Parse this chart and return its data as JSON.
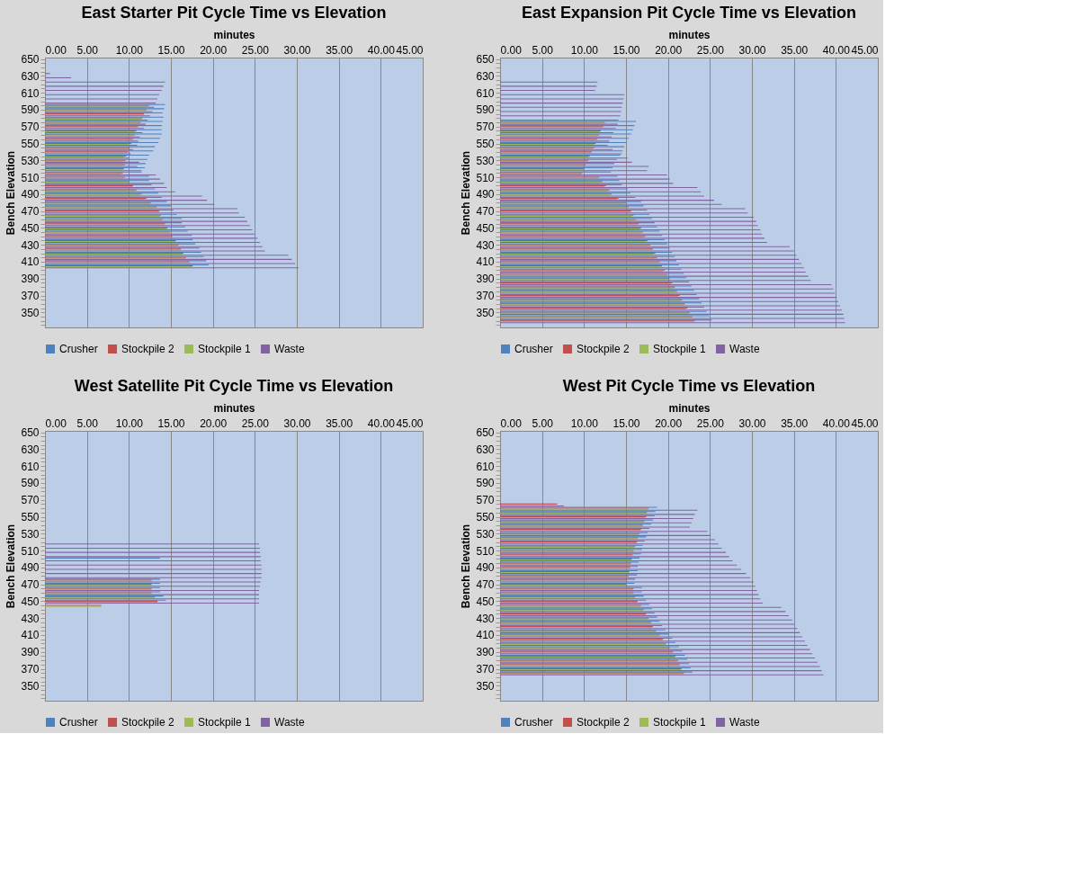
{
  "chart_data": [
    {
      "type": "bar",
      "orientation": "horizontal",
      "title": "East Starter Pit Cycle Time vs Elevation",
      "xlabel": "minutes",
      "ylabel": "Bench Elevation",
      "legend": "bottom",
      "grid": "x",
      "xlim": [
        0,
        45
      ],
      "xticks": [
        {
          "value": 0,
          "label": "0.00"
        },
        {
          "value": 5,
          "label": "5.00"
        },
        {
          "value": 10,
          "label": "10.00"
        },
        {
          "value": 15,
          "label": "15.00"
        },
        {
          "value": 20,
          "label": "20.00"
        },
        {
          "value": 25,
          "label": "25.00"
        },
        {
          "value": 30,
          "label": "30.00"
        },
        {
          "value": 35,
          "label": "35.00"
        },
        {
          "value": 40,
          "label": "40.00"
        },
        {
          "value": 45,
          "label": "45.00"
        }
      ],
      "categories": [
        "650",
        null,
        null,
        null,
        "630",
        null,
        null,
        null,
        "610",
        null,
        null,
        null,
        "590",
        null,
        null,
        null,
        "570",
        null,
        null,
        null,
        "550",
        null,
        null,
        null,
        "530",
        null,
        null,
        null,
        "510",
        null,
        null,
        null,
        "490",
        null,
        null,
        null,
        "470",
        null,
        null,
        null,
        "450",
        null,
        null,
        null,
        "430",
        null,
        null,
        null,
        "410",
        null,
        null,
        null,
        "390",
        null,
        null,
        null,
        "370",
        null,
        null,
        null,
        "350",
        null,
        null,
        null
      ],
      "series": [
        {
          "name": "Crusher",
          "color": "#4f81bd",
          "values": [
            null,
            null,
            null,
            null,
            null,
            null,
            null,
            null,
            null,
            null,
            null,
            14.3,
            14.2,
            14.0,
            14.1,
            14.0,
            13.9,
            13.9,
            13.9,
            13.7,
            13.5,
            13.1,
            12.9,
            12.4,
            12.2,
            12.0,
            11.9,
            11.5,
            12.4,
            12.4,
            12.7,
            13.1,
            13.5,
            13.9,
            14.5,
            15.0,
            15.3,
            15.7,
            16.3,
            16.3,
            16.7,
            17.0,
            17.5,
            17.6,
            17.9,
            18.4,
            18.6,
            18.9,
            19.2,
            19.5,
            null,
            null,
            null,
            null,
            null,
            null,
            null,
            null,
            null,
            null,
            null,
            null,
            null,
            null
          ]
        },
        {
          "name": "Stockpile 2",
          "color": "#c0504d",
          "values": [
            null,
            null,
            null,
            null,
            null,
            null,
            null,
            null,
            null,
            null,
            null,
            12.4,
            12.1,
            11.8,
            11.6,
            11.4,
            11.1,
            10.9,
            10.7,
            10.5,
            10.3,
            10.1,
            9.9,
            9.7,
            9.6,
            9.5,
            9.4,
            9.3,
            9.5,
            10.0,
            10.5,
            10.9,
            11.5,
            12.1,
            12.6,
            13.3,
            13.6,
            13.8,
            14.0,
            14.3,
            14.6,
            14.9,
            15.2,
            15.6,
            15.9,
            16.2,
            16.5,
            16.8,
            17.2,
            17.6,
            null,
            null,
            null,
            null,
            null,
            null,
            null,
            null,
            null,
            null,
            null,
            null,
            null,
            null
          ]
        },
        {
          "name": "Stockpile 1",
          "color": "#9bbb59",
          "values": [
            null,
            null,
            null,
            null,
            null,
            null,
            null,
            null,
            null,
            null,
            null,
            12.2,
            12.0,
            11.7,
            11.5,
            11.2,
            10.9,
            10.7,
            10.5,
            10.3,
            10.1,
            9.9,
            9.6,
            9.4,
            9.3,
            9.3,
            9.2,
            9.1,
            9.3,
            9.8,
            10.4,
            10.7,
            11.3,
            11.9,
            12.5,
            13.1,
            13.5,
            13.7,
            13.9,
            14.2,
            14.5,
            14.8,
            15.1,
            15.5,
            15.8,
            16.1,
            16.4,
            16.7,
            17.1,
            17.5,
            null,
            null,
            null,
            null,
            null,
            null,
            null,
            null,
            null,
            null,
            null,
            null,
            null,
            null
          ]
        },
        {
          "name": "Waste",
          "color": "#8064a2",
          "values": [
            null,
            null,
            null,
            0.6,
            3.1,
            14.3,
            14.1,
            13.9,
            13.6,
            13.4,
            13.2,
            13.0,
            12.8,
            12.5,
            12.2,
            12.0,
            11.8,
            11.6,
            11.3,
            11.1,
            11.0,
            10.5,
            10.2,
            10.0,
            11.2,
            11.0,
            11.5,
            13.2,
            13.7,
            14.2,
            14.5,
            15.5,
            18.7,
            19.3,
            20.2,
            22.9,
            23.1,
            23.8,
            24.1,
            24.4,
            24.7,
            25.0,
            25.3,
            25.6,
            25.9,
            26.2,
            29.0,
            29.4,
            29.8,
            30.2,
            null,
            null,
            null,
            null,
            null,
            null,
            null,
            null,
            null,
            null,
            null,
            null,
            null,
            null
          ]
        }
      ]
    },
    {
      "type": "bar",
      "orientation": "horizontal",
      "title": "East Expansion Pit Cycle Time vs Elevation",
      "xlabel": "minutes",
      "ylabel": "Bench Elevation",
      "legend": "bottom",
      "grid": "x",
      "xlim": [
        0,
        45
      ],
      "xticks": [
        {
          "value": 0,
          "label": "0.00"
        },
        {
          "value": 5,
          "label": "5.00"
        },
        {
          "value": 10,
          "label": "10.00"
        },
        {
          "value": 15,
          "label": "15.00"
        },
        {
          "value": 20,
          "label": "20.00"
        },
        {
          "value": 25,
          "label": "25.00"
        },
        {
          "value": 30,
          "label": "30.00"
        },
        {
          "value": 35,
          "label": "35.00"
        },
        {
          "value": 40,
          "label": "40.00"
        },
        {
          "value": 45,
          "label": "45.00"
        }
      ],
      "categories": [
        "650",
        null,
        null,
        null,
        "630",
        null,
        null,
        null,
        "610",
        null,
        null,
        null,
        "590",
        null,
        null,
        null,
        "570",
        null,
        null,
        null,
        "550",
        null,
        null,
        null,
        "530",
        null,
        null,
        null,
        "510",
        null,
        null,
        null,
        "490",
        null,
        null,
        null,
        "470",
        null,
        null,
        null,
        "450",
        null,
        null,
        null,
        "430",
        null,
        null,
        null,
        "410",
        null,
        null,
        null,
        "390",
        null,
        null,
        null,
        "370",
        null,
        null,
        null,
        "350",
        null,
        null,
        null
      ],
      "series": [
        {
          "name": "Crusher",
          "color": "#4f81bd",
          "values": [
            null,
            null,
            null,
            null,
            null,
            null,
            null,
            null,
            null,
            null,
            null,
            null,
            null,
            null,
            null,
            16.2,
            16.0,
            15.8,
            15.6,
            15.3,
            15.1,
            14.8,
            14.6,
            14.3,
            13.9,
            13.6,
            13.4,
            13.2,
            14.0,
            14.2,
            14.5,
            15.2,
            15.5,
            16.1,
            16.8,
            17.1,
            17.5,
            17.8,
            18.1,
            18.4,
            18.7,
            19.0,
            19.3,
            19.6,
            19.9,
            20.2,
            20.5,
            20.8,
            21.0,
            21.3,
            21.6,
            21.9,
            22.2,
            22.5,
            22.8,
            23.1,
            23.4,
            23.7,
            24.0,
            24.3,
            24.6,
            24.9,
            25.2,
            null
          ]
        },
        {
          "name": "Stockpile 2",
          "color": "#c0504d",
          "values": [
            null,
            null,
            null,
            null,
            null,
            null,
            null,
            null,
            null,
            null,
            null,
            null,
            null,
            null,
            null,
            12.5,
            12.3,
            12.0,
            11.8,
            11.6,
            11.4,
            11.2,
            10.9,
            10.7,
            10.5,
            10.2,
            10.0,
            9.8,
            11.8,
            12.2,
            12.6,
            13.0,
            13.3,
            14.1,
            15.0,
            15.3,
            15.6,
            15.9,
            16.2,
            16.5,
            16.8,
            17.0,
            17.3,
            17.6,
            17.9,
            18.2,
            18.5,
            18.7,
            19.0,
            19.3,
            19.6,
            19.9,
            20.2,
            20.5,
            20.8,
            21.1,
            21.4,
            21.7,
            22.0,
            22.3,
            22.6,
            22.9,
            23.2,
            null
          ]
        },
        {
          "name": "Stockpile 1",
          "color": "#9bbb59",
          "values": [
            null,
            null,
            null,
            null,
            null,
            null,
            null,
            null,
            null,
            null,
            null,
            null,
            null,
            null,
            null,
            12.3,
            12.1,
            11.8,
            11.6,
            11.4,
            11.2,
            11.0,
            10.7,
            10.5,
            10.3,
            10.0,
            9.9,
            9.7,
            11.6,
            12.0,
            12.4,
            12.8,
            13.1,
            13.9,
            14.8,
            15.1,
            15.4,
            15.7,
            16.0,
            16.3,
            16.6,
            16.8,
            17.1,
            17.4,
            17.7,
            18.0,
            18.3,
            18.5,
            18.8,
            19.1,
            19.4,
            19.7,
            20.0,
            20.3,
            20.6,
            20.9,
            21.2,
            21.5,
            21.8,
            22.1,
            22.4,
            22.7,
            23.0,
            null
          ]
        },
        {
          "name": "Waste",
          "color": "#8064a2",
          "values": [
            null,
            null,
            null,
            null,
            null,
            11.6,
            11.5,
            11.3,
            14.8,
            14.7,
            14.6,
            14.5,
            14.4,
            14.3,
            14.1,
            14.0,
            13.8,
            13.5,
            13.3,
            13.0,
            12.8,
            13.4,
            14.5,
            15.2,
            15.7,
            17.7,
            17.5,
            19.9,
            20.2,
            20.6,
            23.5,
            23.9,
            24.3,
            25.5,
            26.4,
            29.2,
            29.5,
            30.2,
            30.5,
            30.7,
            31.0,
            31.2,
            31.5,
            31.8,
            34.5,
            35.0,
            35.3,
            35.6,
            35.9,
            36.2,
            36.4,
            36.7,
            37.0,
            39.5,
            39.7,
            39.9,
            40.1,
            40.3,
            40.5,
            40.7,
            40.9,
            41.0,
            41.1,
            null
          ]
        }
      ]
    },
    {
      "type": "bar",
      "orientation": "horizontal",
      "title": "West Satellite Pit Cycle Time vs Elevation",
      "xlabel": "minutes",
      "ylabel": "Bench Elevation",
      "legend": "bottom",
      "grid": "x",
      "xlim": [
        0,
        45
      ],
      "xticks": [
        {
          "value": 0,
          "label": "0.00"
        },
        {
          "value": 5,
          "label": "5.00"
        },
        {
          "value": 10,
          "label": "10.00"
        },
        {
          "value": 15,
          "label": "15.00"
        },
        {
          "value": 20,
          "label": "20.00"
        },
        {
          "value": 25,
          "label": "25.00"
        },
        {
          "value": 30,
          "label": "30.00"
        },
        {
          "value": 35,
          "label": "35.00"
        },
        {
          "value": 40,
          "label": "40.00"
        },
        {
          "value": 45,
          "label": "45.00"
        }
      ],
      "categories": [
        "650",
        null,
        null,
        null,
        "630",
        null,
        null,
        null,
        "610",
        null,
        null,
        null,
        "590",
        null,
        null,
        null,
        "570",
        null,
        null,
        null,
        "550",
        null,
        null,
        null,
        "530",
        null,
        null,
        null,
        "510",
        null,
        null,
        null,
        "490",
        null,
        null,
        null,
        "470",
        null,
        null,
        null,
        "450",
        null,
        null,
        null,
        "430",
        null,
        null,
        null,
        "410",
        null,
        null,
        null,
        "390",
        null,
        null,
        null,
        "370",
        null,
        null,
        null,
        "350",
        null,
        null,
        null
      ],
      "series": [
        {
          "name": "Crusher",
          "color": "#4f81bd",
          "values": [
            null,
            null,
            null,
            null,
            null,
            null,
            null,
            null,
            null,
            null,
            null,
            null,
            null,
            null,
            null,
            null,
            null,
            null,
            null,
            null,
            null,
            null,
            null,
            null,
            null,
            null,
            null,
            null,
            null,
            null,
            13.7,
            null,
            null,
            null,
            null,
            13.7,
            13.7,
            13.7,
            13.7,
            14.1,
            14.4,
            null,
            null,
            null,
            null,
            null,
            null,
            null,
            null,
            null,
            null,
            null,
            null,
            null,
            null,
            null,
            null,
            null,
            null,
            null,
            null,
            null,
            null,
            null
          ]
        },
        {
          "name": "Stockpile 2",
          "color": "#c0504d",
          "values": [
            null,
            null,
            null,
            null,
            null,
            null,
            null,
            null,
            null,
            null,
            null,
            null,
            null,
            null,
            null,
            null,
            null,
            null,
            null,
            null,
            null,
            null,
            null,
            null,
            null,
            null,
            null,
            null,
            null,
            null,
            null,
            null,
            null,
            null,
            null,
            12.7,
            12.7,
            12.7,
            12.7,
            13.1,
            13.4,
            6.7,
            null,
            null,
            null,
            null,
            null,
            null,
            null,
            null,
            null,
            null,
            null,
            null,
            null,
            null,
            null,
            null,
            null,
            null,
            null,
            null,
            null,
            null
          ]
        },
        {
          "name": "Stockpile 1",
          "color": "#9bbb59",
          "values": [
            null,
            null,
            null,
            null,
            null,
            null,
            null,
            null,
            null,
            null,
            null,
            null,
            null,
            null,
            null,
            null,
            null,
            null,
            null,
            null,
            null,
            null,
            null,
            null,
            null,
            null,
            null,
            null,
            null,
            null,
            null,
            null,
            null,
            null,
            null,
            12.7,
            12.6,
            12.7,
            12.7,
            13.0,
            13.4,
            6.7,
            null,
            null,
            null,
            null,
            null,
            null,
            null,
            null,
            null,
            null,
            null,
            null,
            null,
            null,
            null,
            null,
            null,
            null,
            null,
            null,
            null,
            null
          ]
        },
        {
          "name": "Waste",
          "color": "#8064a2",
          "values": [
            null,
            null,
            null,
            null,
            null,
            null,
            null,
            null,
            null,
            null,
            null,
            null,
            null,
            null,
            null,
            null,
            null,
            null,
            null,
            null,
            null,
            null,
            null,
            null,
            null,
            null,
            25.5,
            25.6,
            25.6,
            25.7,
            25.7,
            25.8,
            25.8,
            25.8,
            25.8,
            25.7,
            25.6,
            25.5,
            25.5,
            25.5,
            25.5,
            null,
            null,
            null,
            null,
            null,
            null,
            null,
            null,
            null,
            null,
            null,
            null,
            null,
            null,
            null,
            null,
            null,
            null,
            null,
            null,
            null,
            null,
            null
          ]
        }
      ]
    },
    {
      "type": "bar",
      "orientation": "horizontal",
      "title": "West Pit Cycle Time vs Elevation",
      "xlabel": "minutes",
      "ylabel": "Bench Elevation",
      "legend": "bottom",
      "grid": "x",
      "xlim": [
        0,
        45
      ],
      "xticks": [
        {
          "value": 0,
          "label": "0.00"
        },
        {
          "value": 5,
          "label": "5.00"
        },
        {
          "value": 10,
          "label": "10.00"
        },
        {
          "value": 15,
          "label": "15.00"
        },
        {
          "value": 20,
          "label": "20.00"
        },
        {
          "value": 25,
          "label": "25.00"
        },
        {
          "value": 30,
          "label": "30.00"
        },
        {
          "value": 35,
          "label": "35.00"
        },
        {
          "value": 40,
          "label": "40.00"
        },
        {
          "value": 45,
          "label": "45.00"
        }
      ],
      "categories": [
        "650",
        null,
        null,
        null,
        "630",
        null,
        null,
        null,
        "610",
        null,
        null,
        null,
        "590",
        null,
        null,
        null,
        "570",
        null,
        null,
        null,
        "550",
        null,
        null,
        null,
        "530",
        null,
        null,
        null,
        "510",
        null,
        null,
        null,
        "490",
        null,
        null,
        null,
        "470",
        null,
        null,
        null,
        "450",
        null,
        null,
        null,
        "430",
        null,
        null,
        null,
        "410",
        null,
        null,
        null,
        "390",
        null,
        null,
        null,
        "370",
        null,
        null,
        null,
        "350",
        null,
        null,
        null
      ],
      "series": [
        {
          "name": "Crusher",
          "color": "#4f81bd",
          "values": [
            null,
            null,
            null,
            null,
            null,
            null,
            null,
            null,
            null,
            null,
            null,
            null,
            null,
            null,
            null,
            null,
            null,
            null,
            18.7,
            18.5,
            18.4,
            18.2,
            18.0,
            17.8,
            17.6,
            17.4,
            17.2,
            17.0,
            16.9,
            16.8,
            16.6,
            16.5,
            16.4,
            16.4,
            16.3,
            16.1,
            16.0,
            16.9,
            16.9,
            17.1,
            17.4,
            17.8,
            18.1,
            18.4,
            18.7,
            19.0,
            19.3,
            19.7,
            20.1,
            20.5,
            20.9,
            21.3,
            21.7,
            22.0,
            22.3,
            22.5,
            22.7,
            22.9,
            null,
            null,
            null,
            null,
            null,
            null
          ]
        },
        {
          "name": "Stockpile 2",
          "color": "#c0504d",
          "values": [
            null,
            null,
            null,
            null,
            null,
            null,
            null,
            null,
            null,
            null,
            null,
            null,
            null,
            null,
            null,
            null,
            null,
            6.8,
            17.7,
            17.5,
            17.4,
            17.2,
            17.0,
            16.8,
            16.6,
            16.4,
            16.3,
            16.1,
            15.9,
            15.8,
            15.7,
            15.6,
            15.5,
            15.4,
            15.3,
            15.1,
            15.0,
            15.9,
            15.9,
            16.1,
            16.4,
            16.8,
            17.1,
            17.4,
            17.7,
            18.0,
            18.2,
            18.6,
            19.0,
            19.4,
            19.8,
            20.2,
            20.6,
            20.9,
            21.2,
            21.4,
            21.6,
            21.9,
            null,
            null,
            null,
            null,
            null,
            null
          ]
        },
        {
          "name": "Stockpile 1",
          "color": "#9bbb59",
          "values": [
            null,
            null,
            null,
            null,
            null,
            null,
            null,
            null,
            null,
            null,
            null,
            null,
            null,
            null,
            null,
            null,
            null,
            null,
            17.6,
            17.4,
            17.3,
            17.1,
            16.9,
            16.7,
            16.5,
            16.3,
            16.2,
            16.0,
            15.8,
            15.7,
            15.6,
            15.5,
            15.4,
            15.3,
            15.2,
            15.0,
            14.9,
            15.8,
            15.8,
            16.0,
            16.3,
            16.7,
            17.0,
            17.3,
            17.6,
            17.9,
            18.1,
            18.5,
            18.9,
            19.3,
            19.7,
            20.1,
            20.5,
            20.8,
            21.1,
            21.3,
            21.5,
            21.8,
            null,
            null,
            null,
            null,
            null,
            null
          ]
        },
        {
          "name": "Waste",
          "color": "#8064a2",
          "values": [
            null,
            null,
            null,
            null,
            null,
            null,
            null,
            null,
            null,
            null,
            null,
            null,
            null,
            null,
            null,
            null,
            null,
            7.6,
            23.5,
            23.2,
            23.0,
            22.8,
            22.6,
            24.7,
            25.1,
            25.6,
            26.0,
            26.4,
            26.9,
            27.3,
            27.7,
            28.2,
            28.7,
            29.3,
            29.8,
            30.2,
            30.4,
            30.6,
            30.8,
            31.0,
            31.3,
            33.5,
            34.0,
            34.4,
            34.8,
            35.1,
            35.4,
            35.7,
            36.0,
            36.3,
            36.6,
            36.9,
            37.2,
            37.5,
            37.8,
            38.1,
            38.3,
            38.5,
            null,
            null,
            null,
            null,
            null,
            null
          ]
        }
      ]
    }
  ]
}
